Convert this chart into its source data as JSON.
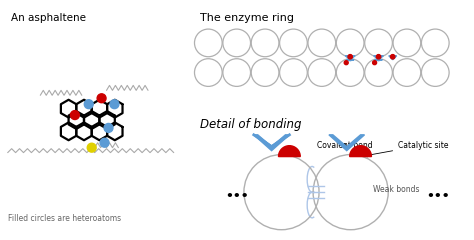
{
  "title_asphaltene": "An asphaltene",
  "title_enzyme": "The enzyme ring",
  "title_bonding": "Detail of bonding",
  "label_heteroatoms": "Filled circles are heteroatoms",
  "label_covalent": "Covalent bond",
  "label_catalytic": "Catalytic site",
  "label_weak": "Weak bonds",
  "bg_color": "#ffffff",
  "blue_color": "#5b9bd5",
  "red_color": "#cc0000",
  "yellow_color": "#e0d000",
  "ring_gray": "#b0b0b0",
  "light_blue": "#aec6e8"
}
